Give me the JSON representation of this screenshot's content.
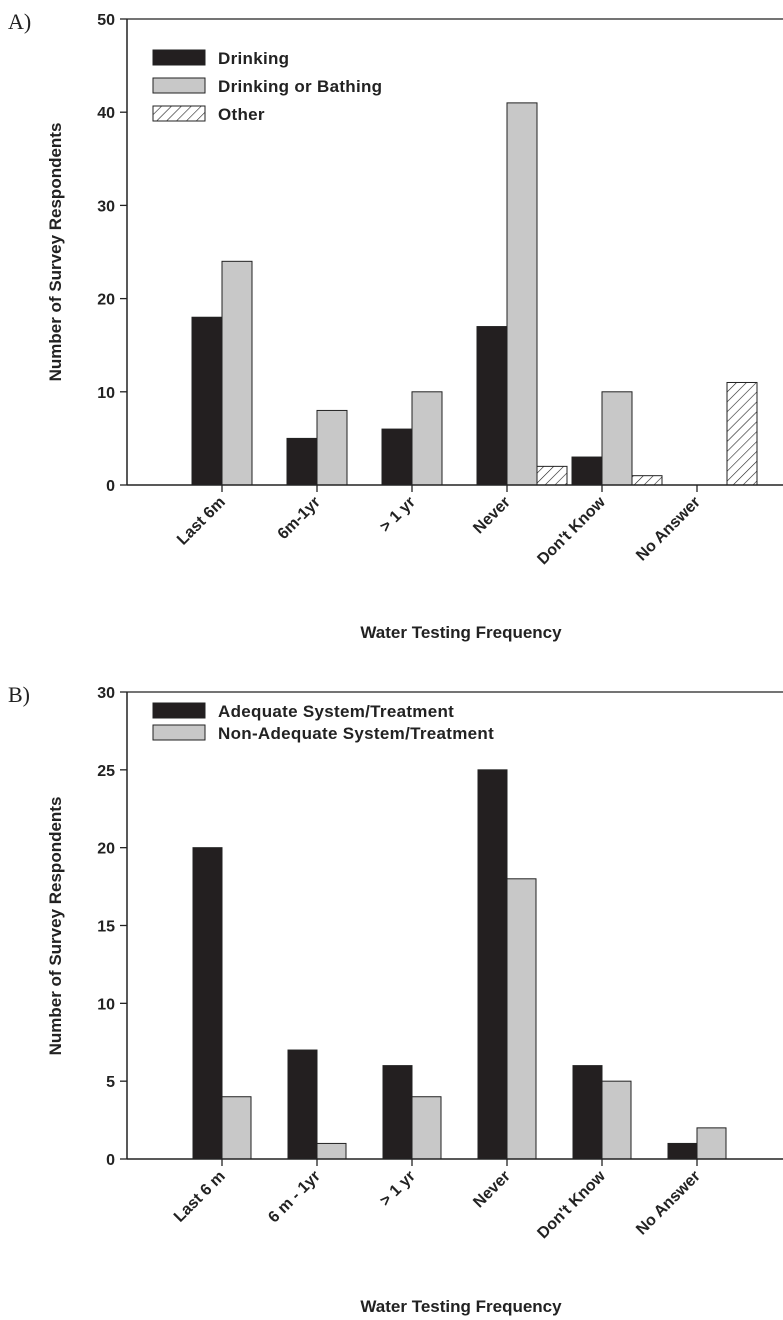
{
  "chart_data": [
    {
      "panel": "A)",
      "type": "bar",
      "xlabel": "Water Testing Frequency",
      "ylabel": "Number of Survey Respondents",
      "ylim": [
        0,
        50
      ],
      "yticks": [
        "0",
        "10",
        "20",
        "30",
        "40",
        "50"
      ],
      "categories": [
        "Last 6m",
        "6m-1yr",
        "> 1 yr",
        "Never",
        "Don't Know",
        "No Answer"
      ],
      "series": [
        {
          "name": "Drinking",
          "color": "#231f20",
          "pattern": "solid",
          "values": [
            18,
            5,
            6,
            17,
            3,
            0
          ]
        },
        {
          "name": "Drinking or Bathing",
          "color": "#c8c8c8",
          "pattern": "solid",
          "values": [
            24,
            8,
            10,
            41,
            10,
            0
          ]
        },
        {
          "name": "Other",
          "color": "#ffffff",
          "pattern": "hatch",
          "values": [
            0,
            0,
            0,
            2,
            1,
            11
          ]
        }
      ],
      "legend": "top-left",
      "grid": false
    },
    {
      "panel": "B)",
      "type": "bar",
      "xlabel": "Water Testing Frequency",
      "ylabel": "Number of Survey Respondents",
      "ylim": [
        0,
        30
      ],
      "yticks": [
        "0",
        "5",
        "10",
        "15",
        "20",
        "25",
        "30"
      ],
      "categories": [
        "Last 6 m",
        "6 m - 1yr",
        "> 1 yr",
        "Never",
        "Don't Know",
        "No Answer"
      ],
      "series": [
        {
          "name": "Adequate System/Treatment",
          "color": "#231f20",
          "pattern": "solid",
          "values": [
            20,
            7,
            6,
            25,
            6,
            1
          ]
        },
        {
          "name": "Non-Adequate System/Treatment",
          "color": "#c8c8c8",
          "pattern": "solid",
          "values": [
            4,
            1,
            4,
            18,
            5,
            2
          ]
        }
      ],
      "legend": "top-left",
      "grid": false
    }
  ]
}
